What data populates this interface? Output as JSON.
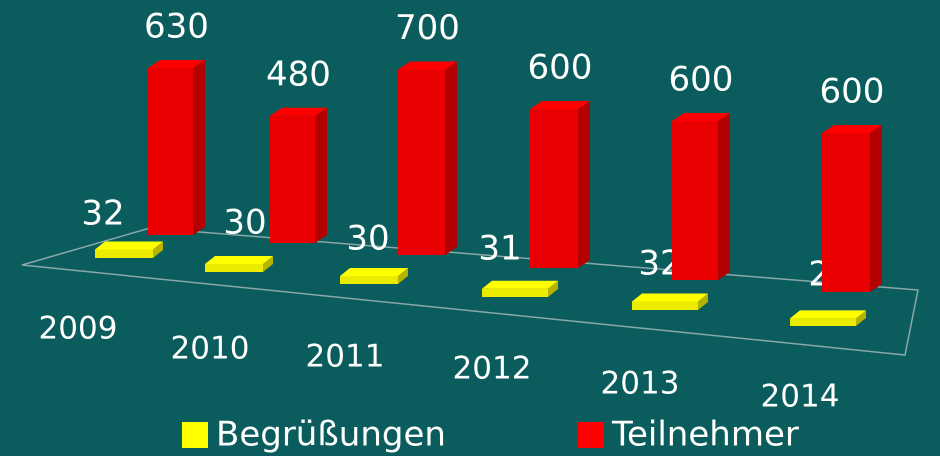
{
  "chart_data": {
    "type": "bar3d",
    "categories": [
      "2009",
      "2010",
      "2011",
      "2012",
      "2013",
      "2014"
    ],
    "series": [
      {
        "name": "Begrüßungen",
        "color": "#ffff00",
        "values": [
          32,
          30,
          30,
          31,
          32,
          29
        ]
      },
      {
        "name": "Teilnehmer",
        "color": "#ff0000",
        "values": [
          630,
          480,
          700,
          600,
          600,
          600
        ]
      }
    ],
    "legend": "bottom"
  }
}
